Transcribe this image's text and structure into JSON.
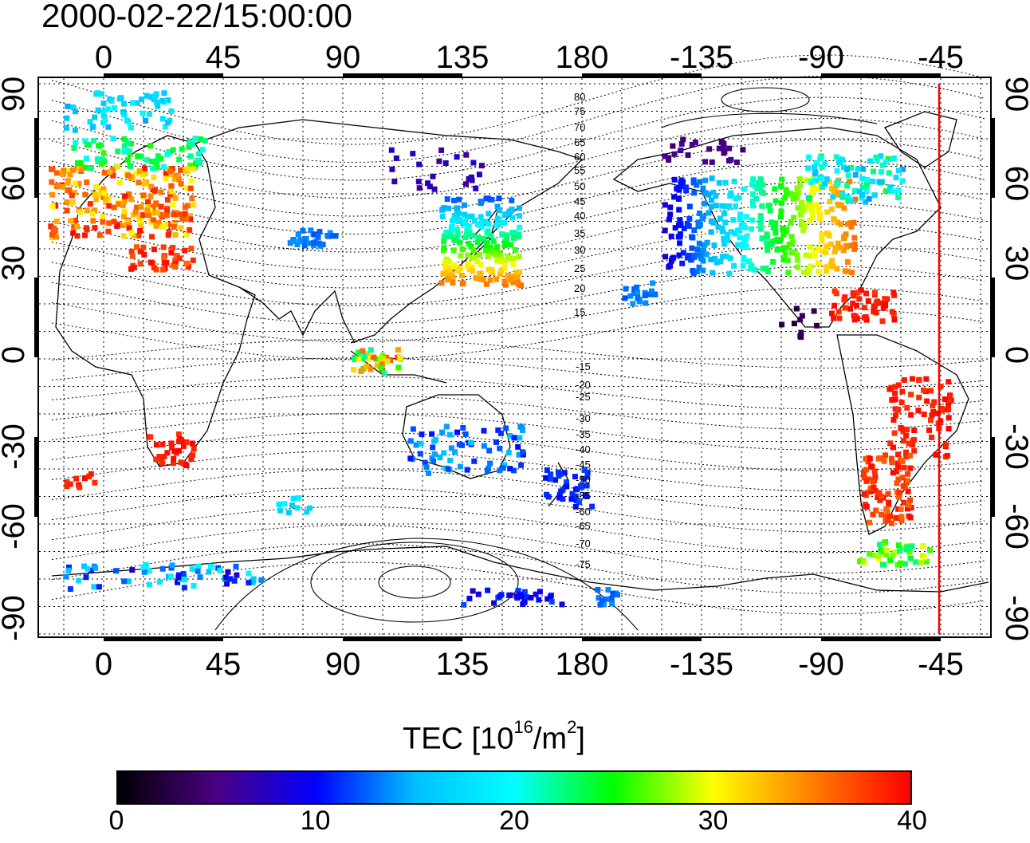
{
  "title": "2000-02-22/15:00:00",
  "lon_labels": [
    "0",
    "45",
    "90",
    "135",
    "180",
    "-135",
    "-90",
    "-45"
  ],
  "lat_labels": [
    "90",
    "60",
    "30",
    "0",
    "-30",
    "-60",
    "-90"
  ],
  "contour_labels": [
    "80",
    "75",
    "70",
    "65",
    "60",
    "55",
    "50",
    "45",
    "40",
    "35",
    "30",
    "25",
    "20",
    "15",
    "-15",
    "-20",
    "-25",
    "-30",
    "-35",
    "-40",
    "-45",
    "-50",
    "-55",
    "-60",
    "-65",
    "-70",
    "-75"
  ],
  "colorbar": {
    "title_main": "TEC  [10",
    "title_exp": "16",
    "title_unit": "/m",
    "title_unit_exp": "2",
    "title_close": "]",
    "ticks": [
      "0",
      "10",
      "20",
      "30",
      "40"
    ],
    "colors": [
      "#000000",
      "#4b0082",
      "#0000ff",
      "#00bfff",
      "#00ffff",
      "#00ff00",
      "#ffff00",
      "#ff8000",
      "#ff0000"
    ]
  },
  "marker_line_color": "#ff0000"
}
